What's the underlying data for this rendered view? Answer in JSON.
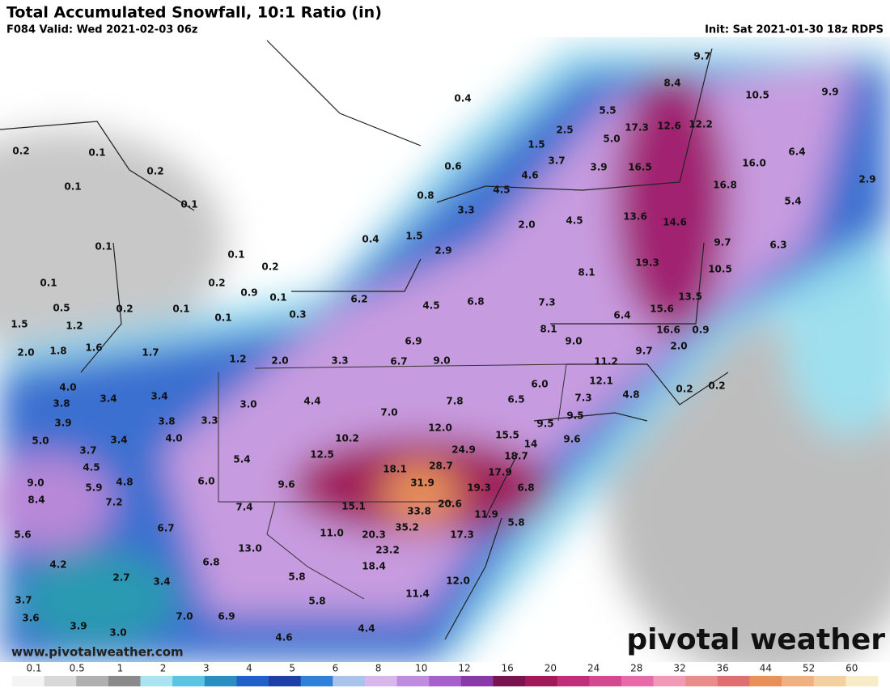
{
  "header": {
    "title": "Total Accumulated Snowfall, 10:1 Ratio (in)",
    "valid": "F084 Valid: Wed 2021-02-03 06z",
    "init": "Init: Sat 2021-01-30 18z RDPS"
  },
  "labels": [
    "0.2",
    "0.1",
    "0.2",
    "0.1",
    "0.1",
    "0.1",
    "0.1",
    "0.5",
    "0.2",
    "0.1",
    "0.1",
    "0.1",
    "0.2",
    "0.2",
    "0.9",
    "0.1",
    "0.3",
    "1.5",
    "1.2",
    "2.0",
    "1.8",
    "1.6",
    "1.7",
    "1.2",
    "2.0",
    "3.3",
    "0.4",
    "0.6",
    "0.8",
    "0.4",
    "1.5",
    "2.9",
    "3.3",
    "2.0",
    "4.5",
    "4.6",
    "3.7",
    "1.5",
    "2.5",
    "5.5",
    "5.0",
    "3.9",
    "4.5",
    "9.7",
    "8.4",
    "10.5",
    "9.9",
    "17.3",
    "12.6",
    "12.2",
    "16.5",
    "16.0",
    "6.4",
    "2.9",
    "16.8",
    "5.4",
    "13.6",
    "14.6",
    "9.7",
    "6.3",
    "19.3",
    "10.5",
    "8.1",
    "13.5",
    "15.6",
    "6.4",
    "16.6",
    "0.9",
    "7.3",
    "8.1",
    "9.0",
    "9.7",
    "2.0",
    "11.2",
    "12.1",
    "6.0",
    "7.3",
    "4.8",
    "0.2",
    "0.2",
    "6.2",
    "4.5",
    "6.8",
    "6.9",
    "6.7",
    "9.0",
    "7.8",
    "6.5",
    "9.5",
    "9.5",
    "9.6",
    "7.0",
    "12.0",
    "15.5",
    "14",
    "18.7",
    "24.9",
    "28.7",
    "17.9",
    "18.1",
    "31.9",
    "19.3",
    "6.8",
    "20.6",
    "15.1",
    "33.8",
    "11.9",
    "5.8",
    "35.2",
    "17.3",
    "20.3",
    "11.0",
    "23.2",
    "18.4",
    "12.0",
    "11.4",
    "4.4",
    "3.0",
    "10.2",
    "12.5",
    "5.4",
    "9.6",
    "7.4",
    "13.0",
    "6.8",
    "5.8",
    "5.8",
    "6.9",
    "7.0",
    "4.4",
    "4.6",
    "4.0",
    "3.8",
    "3.4",
    "3.4",
    "3.9",
    "3.8",
    "3.3",
    "4.0",
    "5.0",
    "3.7",
    "3.4",
    "4.5",
    "9.0",
    "5.9",
    "4.8",
    "6.0",
    "8.4",
    "7.2",
    "6.7",
    "5.6",
    "4.2",
    "2.7",
    "3.4",
    "3.7",
    "3.6",
    "3.9",
    "3.0"
  ],
  "legend": [
    "0.1",
    "0.5",
    "1",
    "2",
    "3",
    "4",
    "5",
    "6",
    "8",
    "10",
    "12",
    "16",
    "20",
    "24",
    "28",
    "32",
    "36",
    "44",
    "52",
    "60"
  ],
  "watermark_url": "www.pivotalweather.com",
  "watermark_logo": "pivotal weather"
}
